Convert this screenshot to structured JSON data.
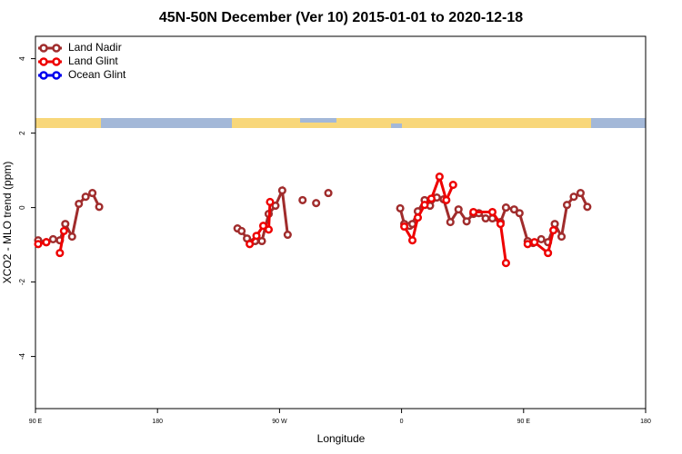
{
  "chart_data": {
    "type": "line",
    "title": "45N-50N December (Ver 10)   2015-01-01 to 2020-12-18",
    "x_label": "Longitude",
    "y_label": "XCO2 - MLO trend (ppm)",
    "xlim": [
      -270,
      180
    ],
    "ylim": [
      -5.4,
      4.6
    ],
    "xticks": [
      {
        "value": -270,
        "label": "90 E"
      },
      {
        "value": -180,
        "label": "180"
      },
      {
        "value": -90,
        "label": "90 W"
      },
      0,
      {
        "value": 90,
        "label": "90 E"
      },
      180
    ],
    "yticks": [
      -4,
      -2,
      0,
      2,
      4
    ],
    "legend": "top-left",
    "series": [
      {
        "name": "Land Nadir",
        "color": "#a02c2c",
        "x": [
          -268,
          -262,
          -257,
          -252,
          -248,
          -243,
          -238,
          -233,
          -228,
          -223,
          null,
          -121,
          -118,
          -114,
          -108,
          -103,
          -98,
          -93,
          -88,
          -84,
          null,
          -73,
          null,
          -63,
          null,
          -54,
          null,
          -1,
          2,
          6,
          8,
          12,
          17,
          21,
          26,
          31,
          36,
          42,
          48,
          53,
          57,
          62,
          67,
          73,
          77,
          83,
          87,
          93,
          97,
          103,
          108,
          113,
          118,
          122,
          127,
          132,
          137
        ],
        "values": [
          -0.88,
          -0.93,
          -0.85,
          -0.88,
          -0.44,
          -0.78,
          0.1,
          0.29,
          0.39,
          0.02,
          null,
          -0.56,
          -0.63,
          -0.83,
          -0.9,
          -0.9,
          -0.17,
          0.05,
          0.46,
          -0.73,
          null,
          0.2,
          null,
          0.12,
          null,
          0.39,
          null,
          -0.02,
          -0.44,
          -0.49,
          -0.44,
          -0.1,
          0.2,
          0.05,
          0.27,
          0.22,
          -0.39,
          -0.05,
          -0.37,
          -0.17,
          -0.15,
          -0.29,
          -0.29,
          -0.39,
          0,
          -0.05,
          -0.15,
          -0.9,
          -0.95,
          -0.85,
          -0.93,
          -0.44,
          -0.78,
          0.07,
          0.29,
          0.39,
          0.02
        ]
      },
      {
        "name": "Land Glint",
        "color": "#ee0000",
        "x": [
          -268,
          -262,
          null,
          -252,
          -249,
          null,
          -112,
          -107,
          -102,
          -98,
          -97,
          null,
          2,
          8,
          12,
          17,
          22,
          28,
          33,
          38,
          null,
          53,
          67,
          73,
          77,
          null,
          93,
          98,
          108,
          112
        ],
        "values": [
          -0.98,
          -0.93,
          null,
          -1.22,
          -0.63,
          null,
          -0.98,
          -0.76,
          -0.49,
          -0.59,
          0.15,
          null,
          -0.51,
          -0.88,
          -0.27,
          0.07,
          0.24,
          0.83,
          0.2,
          0.61,
          null,
          -0.12,
          -0.12,
          -0.44,
          -1.49,
          null,
          -0.98,
          -0.93,
          -1.22,
          -0.61
        ]
      },
      {
        "name": "Ocean Glint",
        "color": "#0000ee",
        "x": [],
        "values": []
      }
    ]
  }
}
